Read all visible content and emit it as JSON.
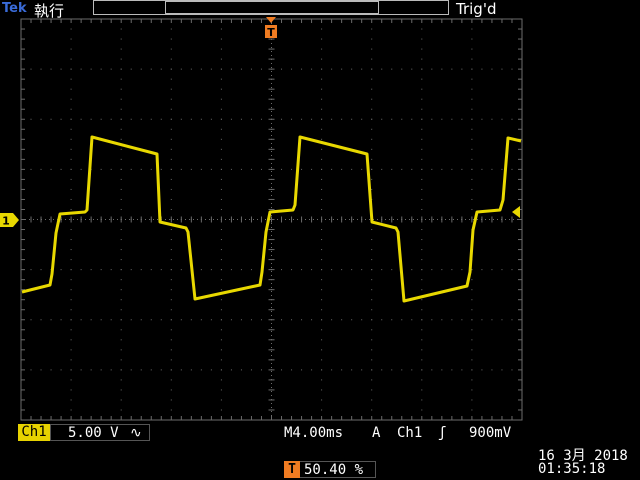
{
  "header": {
    "brand": "Tek",
    "run_status": "執行",
    "trigger_status": "Trig'd",
    "trigger_position_letter": "T"
  },
  "channel": {
    "label": "Ch1",
    "marker": "1",
    "volts_per_div": "5.00 V",
    "coupling_symbol": "∿",
    "color": "#e8d800"
  },
  "timebase": {
    "label": "M4.00ms"
  },
  "trigger": {
    "mode_letter": "A",
    "source": "Ch1",
    "slope_symbol": "ʃ",
    "level": "900mV",
    "position_letter": "T",
    "position_value": "50.40 %",
    "marker_color": "#f07c22"
  },
  "clock": {
    "date": "16 3月  2018",
    "time": "01:35:18"
  },
  "grid": {
    "color": "#6b6b6b",
    "divisions_x": 10,
    "divisions_y": 8
  }
}
